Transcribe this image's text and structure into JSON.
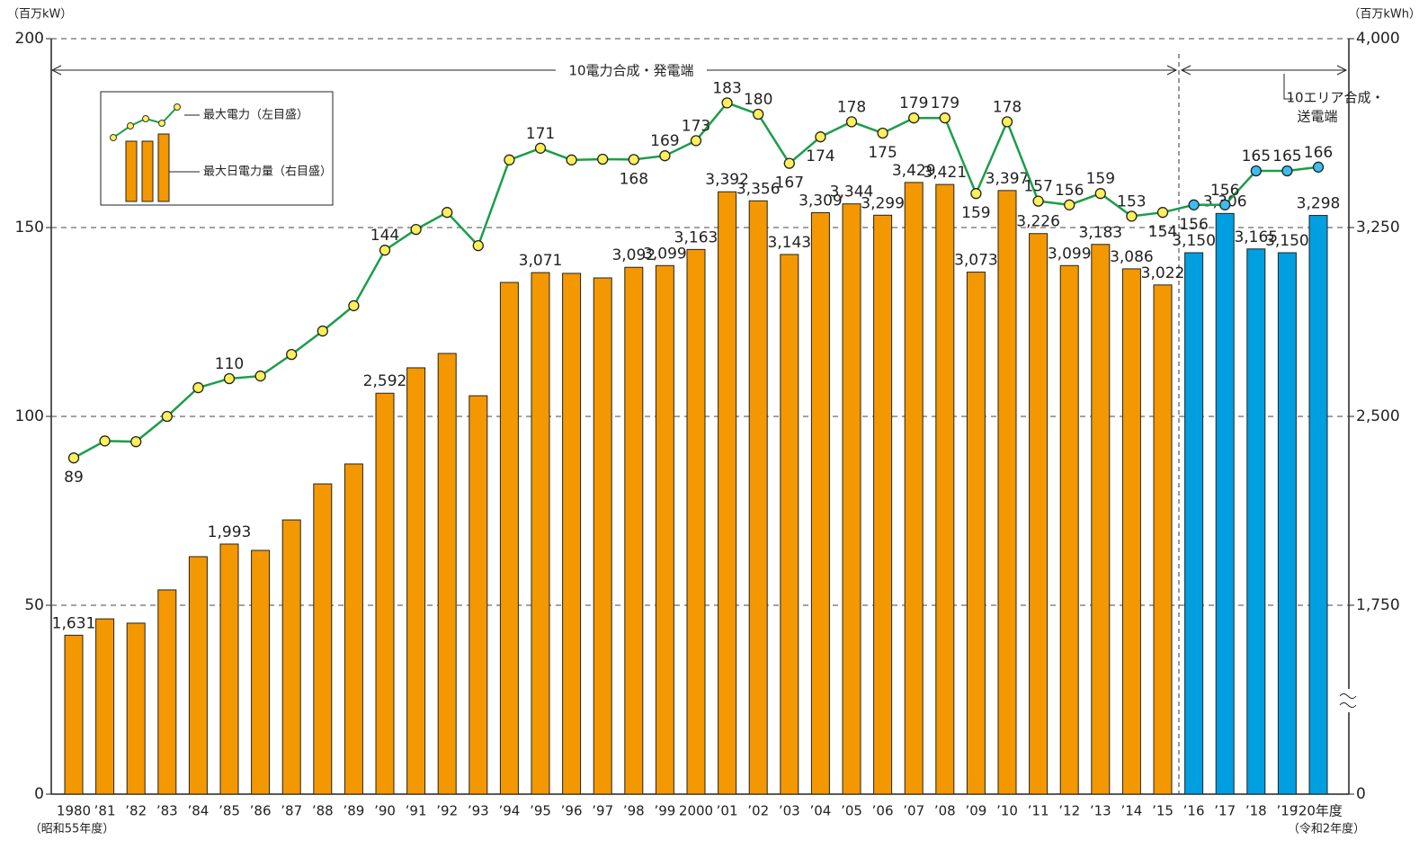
{
  "chart_data": {
    "type": "bar_line",
    "y_label": "（百万kW）",
    "y2_label": "（百万kWh）",
    "annotation_left": "10電力合成・発電端",
    "annotation_right": [
      "10エリア合成・",
      "送電端"
    ],
    "x_sublabels": [
      "（昭和55年度）",
      "（令和2年度）"
    ],
    "categories": [
      "1980",
      "’81",
      "’82",
      "’83",
      "’84",
      "’85",
      "’86",
      "’87",
      "’88",
      "’89",
      "’90",
      "’91",
      "’92",
      "’93",
      "’94",
      "’95",
      "’96",
      "’97",
      "’98",
      "’99",
      "2000",
      "’01",
      "’02",
      "’03",
      "’04",
      "’05",
      "’06",
      "’07",
      "’08",
      "’09",
      "’10",
      "’11",
      "’12",
      "’13",
      "’14",
      "’15",
      "’16",
      "’17",
      "’18",
      "’19",
      "’20年度"
    ],
    "series": [
      {
        "name": "最大日電力量（右目盛）",
        "axis": "y2",
        "kind": "bar",
        "colors": [
          "#f39800",
          "#f39800",
          "#f39800",
          "#f39800",
          "#f39800",
          "#f39800",
          "#f39800",
          "#f39800",
          "#f39800",
          "#f39800",
          "#f39800",
          "#f39800",
          "#f39800",
          "#f39800",
          "#f39800",
          "#f39800",
          "#f39800",
          "#f39800",
          "#f39800",
          "#f39800",
          "#f39800",
          "#f39800",
          "#f39800",
          "#f39800",
          "#f39800",
          "#f39800",
          "#f39800",
          "#f39800",
          "#f39800",
          "#f39800",
          "#f39800",
          "#f39800",
          "#f39800",
          "#f39800",
          "#f39800",
          "#f39800",
          "#009fe0",
          "#009fe0",
          "#009fe0",
          "#009fe0",
          "#009fe0"
        ],
        "values": [
          1631,
          1696,
          1679,
          1811,
          1943,
          1993,
          1968,
          2089,
          2232,
          2311,
          2592,
          2693,
          2750,
          2582,
          3032,
          3071,
          3068,
          3050,
          3092,
          3099,
          3163,
          3392,
          3356,
          3143,
          3309,
          3344,
          3299,
          3429,
          3421,
          3073,
          3397,
          3226,
          3099,
          3183,
          3086,
          3022,
          3150,
          3306,
          3165,
          3150,
          3298
        ],
        "value_labels": [
          "1,631",
          null,
          null,
          null,
          null,
          "1,993",
          null,
          null,
          null,
          null,
          "2,592",
          null,
          null,
          null,
          null,
          "3,071",
          null,
          null,
          "3,092",
          "3,099",
          "3,163",
          "3,392",
          "3,356",
          "3,143",
          "3,309",
          "3,344",
          "3,299",
          "3,429",
          "3,421",
          "3,073",
          "3,397",
          "3,226",
          "3,099",
          "3,183",
          "3,086",
          "3,022",
          "3,150",
          "3,306",
          "3,165",
          "3,150",
          "3,298"
        ]
      },
      {
        "name": "最大電力（左目盛）",
        "axis": "y",
        "kind": "line",
        "color": "#1a9e48",
        "marker_colors": [
          "#fff05a",
          "#fff05a",
          "#fff05a",
          "#fff05a",
          "#fff05a",
          "#fff05a",
          "#fff05a",
          "#fff05a",
          "#fff05a",
          "#fff05a",
          "#fff05a",
          "#fff05a",
          "#fff05a",
          "#fff05a",
          "#fff05a",
          "#fff05a",
          "#fff05a",
          "#fff05a",
          "#fff05a",
          "#fff05a",
          "#fff05a",
          "#fff05a",
          "#fff05a",
          "#fff05a",
          "#fff05a",
          "#fff05a",
          "#fff05a",
          "#fff05a",
          "#fff05a",
          "#fff05a",
          "#fff05a",
          "#fff05a",
          "#fff05a",
          "#fff05a",
          "#fff05a",
          "#fff05a",
          "#3cbdf0",
          "#3cbdf0",
          "#3cbdf0",
          "#3cbdf0",
          "#3cbdf0"
        ],
        "values": [
          89,
          93.5,
          93.3,
          100,
          107.6,
          110,
          110.7,
          116.4,
          122.6,
          129.3,
          144,
          149.5,
          154,
          145.2,
          167.9,
          171,
          167.9,
          168.1,
          168,
          169,
          173,
          183,
          180,
          167,
          174,
          178,
          175,
          179,
          179,
          159,
          178,
          157,
          156,
          159,
          153,
          154,
          156,
          156,
          165,
          165,
          166
        ],
        "value_labels": [
          "89",
          null,
          null,
          null,
          null,
          "110",
          null,
          null,
          null,
          null,
          "144",
          null,
          null,
          null,
          null,
          "171",
          null,
          null,
          "168",
          "169",
          "173",
          "183",
          "180",
          "167",
          "174",
          "178",
          "175",
          "179",
          "179",
          "159",
          "178",
          "157",
          "156",
          "159",
          "153",
          "154",
          "156",
          "156",
          "165",
          "165",
          "166"
        ]
      }
    ],
    "ylim": [
      0,
      200
    ],
    "yticks": [
      0,
      50,
      100,
      150,
      200
    ],
    "y2lim": [
      1000,
      4000
    ],
    "y2ticks": [
      0,
      {
        "value": 1750,
        "label": "1,750"
      },
      {
        "value": 2500,
        "label": "2,500"
      },
      {
        "value": 3250,
        "label": "3,250"
      },
      {
        "value": 4000,
        "label": "4,000"
      }
    ],
    "y2break": true,
    "grid": true
  }
}
